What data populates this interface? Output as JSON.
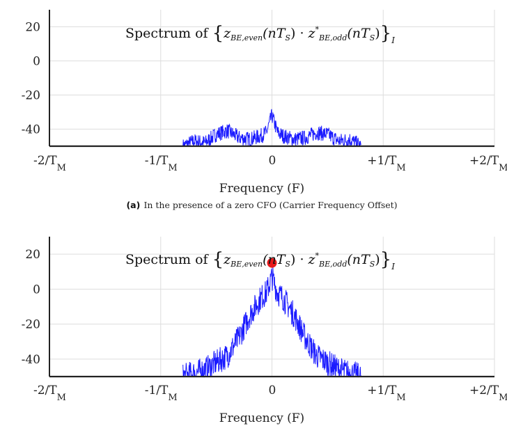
{
  "chart_data": [
    {
      "panel": "a",
      "type": "line",
      "title": "Spectrum of {z_BE,even(nT_S) · z*_BE,odd(nT_S)}_I",
      "title_parts": {
        "pre": "Spectrum of",
        "z1": "z",
        "s1": "BE,even",
        "a1": "(nT",
        "s2": "S",
        "a2": ")",
        "dot": "·",
        "z2": "z",
        "sup": "*",
        "s3": "BE,odd",
        "s4": "S",
        "sub_i": "I"
      },
      "xlabel": "Frequency (F)",
      "caption_label": "(a)",
      "caption_text": "In the presence of a zero CFO (Carrier Frequency Offset)",
      "xlim": [
        -2,
        2
      ],
      "ylim": [
        -50,
        30
      ],
      "y_ticks": [
        20,
        0,
        -20,
        -40
      ],
      "y_tick_labels": [
        "20",
        "0",
        "-20",
        "-40"
      ],
      "x_ticks": [
        -2,
        -1,
        0,
        1,
        2
      ],
      "x_tick_labels": [
        {
          "main": "-2/T",
          "sub": "M"
        },
        {
          "main": "-1/T",
          "sub": "M"
        },
        {
          "main": "0",
          "sub": ""
        },
        {
          "main": "+1/T",
          "sub": "M"
        },
        {
          "main": "+2/T",
          "sub": "M"
        }
      ],
      "grid": true,
      "series": [
        {
          "color": "#1a1aff",
          "x": [
            -0.8,
            -0.7,
            -0.6,
            -0.5,
            -0.4,
            -0.3,
            -0.2,
            -0.1,
            -0.05,
            0,
            0.05,
            0.1,
            0.2,
            0.3,
            0.4,
            0.5,
            0.6,
            0.7,
            0.8
          ],
          "y": [
            -50,
            -47,
            -48,
            -43,
            -41,
            -45,
            -46,
            -44,
            -42,
            -32,
            -42,
            -44,
            -46,
            -45,
            -42,
            -43,
            -47,
            -46,
            -50
          ]
        }
      ],
      "markers": []
    },
    {
      "panel": "b",
      "type": "line",
      "title": "Spectrum of {z_BE,even(nT_S) · z*_BE,odd(nT_S)}_I",
      "title_parts": {
        "pre": "Spectrum of",
        "z1": "z",
        "s1": "BE,even",
        "a1": "(nT",
        "s2": "S",
        "a2": ")",
        "dot": "·",
        "z2": "z",
        "sup": "*",
        "s3": "BE,odd",
        "s4": "S",
        "sub_i": "I"
      },
      "xlabel": "Frequency (F)",
      "xlim": [
        -2,
        2
      ],
      "ylim": [
        -50,
        30
      ],
      "y_ticks": [
        20,
        0,
        -20,
        -40
      ],
      "y_tick_labels": [
        "20",
        "0",
        "-20",
        "-40"
      ],
      "x_ticks": [
        -2,
        -1,
        0,
        1,
        2
      ],
      "x_tick_labels": [
        {
          "main": "-2/T",
          "sub": "M"
        },
        {
          "main": "-1/T",
          "sub": "M"
        },
        {
          "main": "0",
          "sub": ""
        },
        {
          "main": "+1/T",
          "sub": "M"
        },
        {
          "main": "+2/T",
          "sub": "M"
        }
      ],
      "grid": true,
      "series": [
        {
          "color": "#1a1aff",
          "x": [
            -0.8,
            -0.6,
            -0.4,
            -0.3,
            -0.2,
            -0.1,
            -0.05,
            0,
            0.05,
            0.1,
            0.2,
            0.3,
            0.4,
            0.6,
            0.8
          ],
          "y": [
            -50,
            -46,
            -38,
            -28,
            -15,
            -5,
            -2,
            7,
            -2,
            -5,
            -15,
            -28,
            -38,
            -46,
            -50
          ]
        }
      ],
      "markers": [
        {
          "x": 0,
          "y": 15,
          "color": "#e8191c"
        }
      ]
    }
  ]
}
